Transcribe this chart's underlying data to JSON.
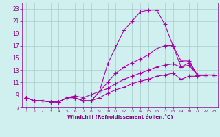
{
  "xlabel": "Windchill (Refroidissement éolien,°C)",
  "x": [
    0,
    1,
    2,
    3,
    4,
    5,
    6,
    7,
    8,
    9,
    10,
    11,
    12,
    13,
    14,
    15,
    16,
    17,
    18,
    19,
    20,
    21,
    22,
    23
  ],
  "line1": [
    8.5,
    8.0,
    8.0,
    7.8,
    7.8,
    8.5,
    8.5,
    8.0,
    8.0,
    9.5,
    14.0,
    16.8,
    19.5,
    21.0,
    22.5,
    22.8,
    22.8,
    20.5,
    17.0,
    14.5,
    14.5,
    12.2,
    12.2,
    12.2
  ],
  "line2": [
    8.5,
    8.0,
    8.0,
    7.8,
    7.8,
    8.5,
    8.8,
    8.5,
    9.0,
    9.5,
    11.0,
    12.5,
    13.5,
    14.2,
    14.8,
    15.5,
    16.5,
    17.0,
    17.0,
    13.5,
    14.2,
    12.2,
    12.2,
    12.2
  ],
  "line3": [
    8.5,
    8.0,
    8.0,
    7.8,
    7.8,
    8.5,
    8.5,
    8.0,
    8.0,
    9.5,
    10.0,
    10.8,
    11.5,
    12.0,
    12.5,
    13.0,
    13.5,
    13.8,
    14.0,
    13.5,
    13.8,
    12.2,
    12.2,
    12.2
  ],
  "line4": [
    8.5,
    8.0,
    8.0,
    7.8,
    7.8,
    8.5,
    8.5,
    8.0,
    8.0,
    8.5,
    9.2,
    9.8,
    10.2,
    10.8,
    11.2,
    11.5,
    12.0,
    12.2,
    12.5,
    11.5,
    12.0,
    12.0,
    12.2,
    12.2
  ],
  "line_color": "#aa00aa",
  "bg_color": "#d0f0f0",
  "grid_color": "#aacccc",
  "label_color": "#880088",
  "ylim": [
    7,
    24
  ],
  "yticks": [
    7,
    9,
    11,
    13,
    15,
    17,
    19,
    21,
    23
  ],
  "xlim": [
    -0.5,
    23.5
  ],
  "marker": "+"
}
